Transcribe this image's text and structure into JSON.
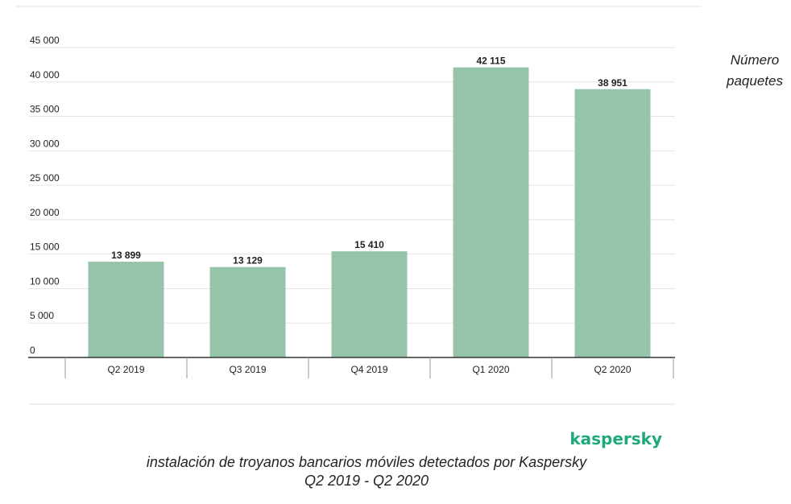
{
  "chart_data": {
    "type": "bar",
    "categories": [
      "Q2 2019",
      "Q3 2019",
      "Q4 2019",
      "Q1 2020",
      "Q2 2020"
    ],
    "values": [
      13899,
      13129,
      15410,
      42115,
      38951
    ],
    "value_labels": [
      "13 899",
      "13 129",
      "15 410",
      "42 115",
      "38 951"
    ],
    "ylabel_lines": [
      "Número",
      "paquetes"
    ],
    "ylim": [
      0,
      45000
    ],
    "yticks": [
      0,
      5000,
      10000,
      15000,
      20000,
      25000,
      30000,
      35000,
      40000,
      45000
    ],
    "ytick_labels": [
      "0",
      "5 000",
      "10 000",
      "15 000",
      "20 000",
      "25 000",
      "30 000",
      "35 000",
      "40 000",
      "45 000"
    ],
    "grid": true,
    "bar_color": "#95c4ab"
  },
  "brand": {
    "text": "kaspersky",
    "color": "#1ea97c"
  },
  "caption": {
    "line1": "instalación de troyanos bancarios móviles detectados por Kaspersky",
    "line2": "Q2 2019 - Q2 2020"
  }
}
